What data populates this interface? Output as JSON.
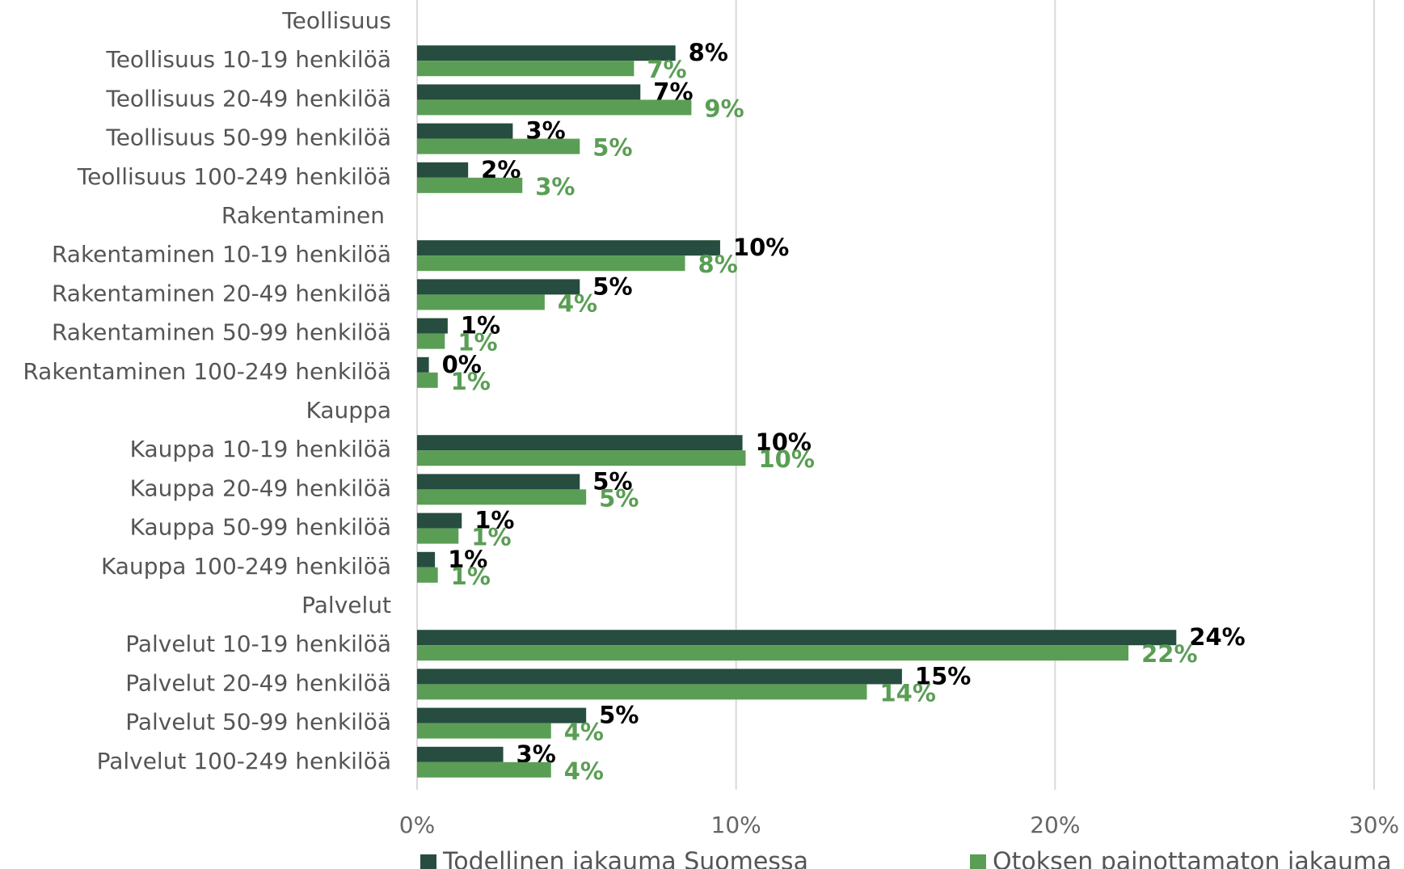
{
  "chart_data": {
    "type": "hbar",
    "categories": [
      "Teollisuus",
      "Teollisuus 10-19 henkilöä",
      "Teollisuus 20-49 henkilöä",
      "Teollisuus 50-99 henkilöä",
      "Teollisuus 100-249 henkilöä",
      "Rakentaminen",
      "Rakentaminen 10-19 henkilöä",
      "Rakentaminen 20-49 henkilöä",
      "Rakentaminen 50-99 henkilöä",
      "Rakentaminen 100-249 henkilöä",
      "Kauppa",
      "Kauppa 10-19 henkilöä",
      "Kauppa 20-49 henkilöä",
      "Kauppa 50-99 henkilöä",
      "Kauppa 100-249 henkilöä",
      "Palvelut",
      "Palvelut 10-19 henkilöä",
      "Palvelut 20-49 henkilöä",
      "Palvelut 50-99 henkilöä",
      "Palvelut 100-249 henkilöä"
    ],
    "series": [
      {
        "name": "Todellinen jakauma Suomessa",
        "color": "#264d3f",
        "label_color": "#000000",
        "values": [
          null,
          8.1,
          7.0,
          3.0,
          1.6,
          null,
          9.5,
          5.1,
          0.96,
          0.37,
          null,
          10.2,
          5.1,
          1.4,
          0.56,
          null,
          23.8,
          15.2,
          5.3,
          2.7
        ],
        "value_labels": [
          null,
          "8%",
          "7%",
          "3%",
          "2%",
          null,
          "10%",
          "5%",
          "1%",
          "0%",
          null,
          "10%",
          "5%",
          "1%",
          "1%",
          null,
          "24%",
          "15%",
          "5%",
          "3%"
        ]
      },
      {
        "name": "Otoksen painottamaton jakauma",
        "color": "#5a9e55",
        "label_color": "#5a9e55",
        "values": [
          null,
          6.8,
          8.6,
          5.1,
          3.3,
          null,
          8.4,
          4.0,
          0.87,
          0.65,
          null,
          10.3,
          5.3,
          1.3,
          0.65,
          null,
          22.3,
          14.1,
          4.2,
          4.2
        ],
        "value_labels": [
          null,
          "7%",
          "9%",
          "5%",
          "3%",
          null,
          "8%",
          "4%",
          "1%",
          "1%",
          null,
          "10%",
          "5%",
          "1%",
          "1%",
          null,
          "22%",
          "14%",
          "4%",
          "4%"
        ]
      }
    ],
    "xlim": [
      0,
      30
    ],
    "xticks": [
      {
        "value": 0,
        "label": "0%"
      },
      {
        "value": 10,
        "label": "10%"
      },
      {
        "value": 20,
        "label": "20%"
      },
      {
        "value": 30,
        "label": "30%"
      }
    ],
    "grid": true,
    "legend": "bottom"
  }
}
